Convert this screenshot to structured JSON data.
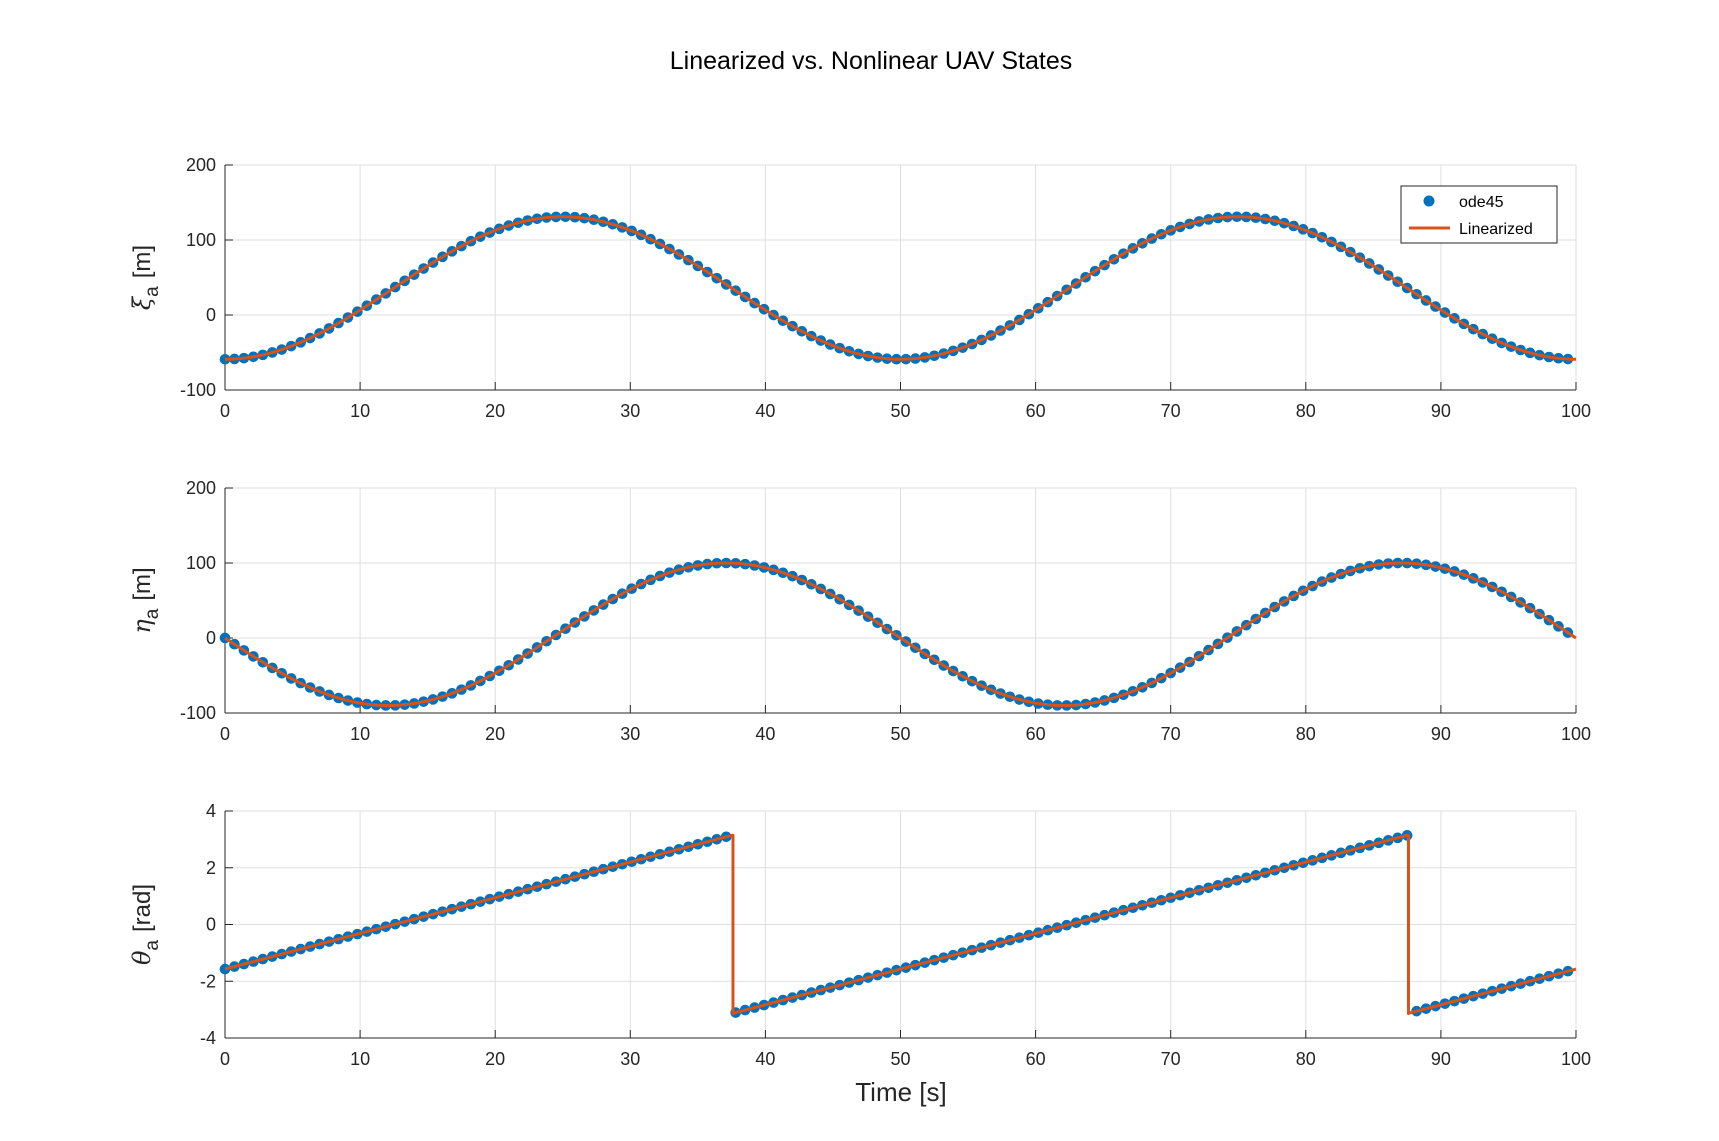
{
  "figure": {
    "title": "Linearized vs. Nonlinear UAV States",
    "xlabel": "Time [s]",
    "colors": {
      "ode45": "#0072BD",
      "linearized": "#D95319",
      "grid": "#DFDFDF",
      "axis": "#262626"
    }
  },
  "legend": {
    "ode45": "ode45",
    "linearized": "Linearized",
    "placement": "top-right of first axes"
  },
  "chart_data": [
    {
      "type": "line",
      "name": "xi",
      "ylabel_sym": "ξ",
      "ylabel_sub": "a",
      "ylabel_unit": "[m]",
      "xlim": [
        0,
        100
      ],
      "ylim": [
        -100,
        200
      ],
      "xticks": [
        0,
        10,
        20,
        30,
        40,
        50,
        60,
        70,
        80,
        90,
        100
      ],
      "yticks": [
        -100,
        0,
        100,
        200
      ],
      "grid": true,
      "legend": true,
      "model": {
        "form": "offset + amp*sin(2*pi*t/period + phase)",
        "amp": 95,
        "offset": 36,
        "period": 50,
        "phase_rad": -1.5708
      },
      "series": [
        {
          "name": "ode45",
          "style": "markers",
          "x_step": 0.7
        },
        {
          "name": "Linearized",
          "style": "line"
        }
      ],
      "key_points": [
        [
          0,
          -59
        ],
        [
          12.5,
          36
        ],
        [
          25,
          131
        ],
        [
          37.5,
          36
        ],
        [
          50,
          -59
        ],
        [
          62.5,
          36
        ],
        [
          75,
          131
        ],
        [
          87.5,
          36
        ],
        [
          100,
          -59
        ]
      ]
    },
    {
      "type": "line",
      "name": "eta",
      "ylabel_sym": "η",
      "ylabel_sub": "a",
      "ylabel_unit": "[m]",
      "xlim": [
        0,
        100
      ],
      "ylim": [
        -100,
        200
      ],
      "xticks": [
        0,
        10,
        20,
        30,
        40,
        50,
        60,
        70,
        80,
        90,
        100
      ],
      "yticks": [
        -100,
        0,
        100,
        200
      ],
      "grid": true,
      "legend": false,
      "model": {
        "form": "offset + amp*sin(2*pi*t/period + phase)",
        "amp": 95,
        "offset": 5,
        "period": 50,
        "phase_rad": 3.194
      },
      "series": [
        {
          "name": "ode45",
          "style": "markers",
          "x_step": 0.7
        },
        {
          "name": "Linearized",
          "style": "line"
        }
      ],
      "key_points": [
        [
          0,
          0
        ],
        [
          12.4,
          -90
        ],
        [
          24.9,
          5
        ],
        [
          37.4,
          100
        ],
        [
          49.9,
          5
        ],
        [
          62.4,
          -90
        ],
        [
          74.9,
          5
        ],
        [
          87.4,
          100
        ],
        [
          100,
          0
        ]
      ]
    },
    {
      "type": "line",
      "name": "theta",
      "ylabel_sym": "θ",
      "ylabel_sub": "a",
      "ylabel_unit": "[rad]",
      "xlim": [
        0,
        100
      ],
      "ylim": [
        -4,
        4
      ],
      "xticks": [
        0,
        10,
        20,
        30,
        40,
        50,
        60,
        70,
        80,
        90,
        100
      ],
      "yticks": [
        -4,
        -2,
        0,
        2,
        4
      ],
      "grid": true,
      "legend": false,
      "model": {
        "form": "wrap(-pi/2 + 2*pi*t/period) to (-pi, pi]",
        "period": 50,
        "start": -1.5708
      },
      "series": [
        {
          "name": "ode45",
          "style": "markers",
          "x_step": 0.7
        },
        {
          "name": "Linearized",
          "style": "line"
        }
      ],
      "key_points": [
        [
          0,
          -1.57
        ],
        [
          37.5,
          3.14
        ],
        [
          37.5,
          -3.14
        ],
        [
          87.5,
          3.14
        ],
        [
          87.5,
          -3.14
        ],
        [
          100,
          -1.57
        ]
      ]
    }
  ]
}
